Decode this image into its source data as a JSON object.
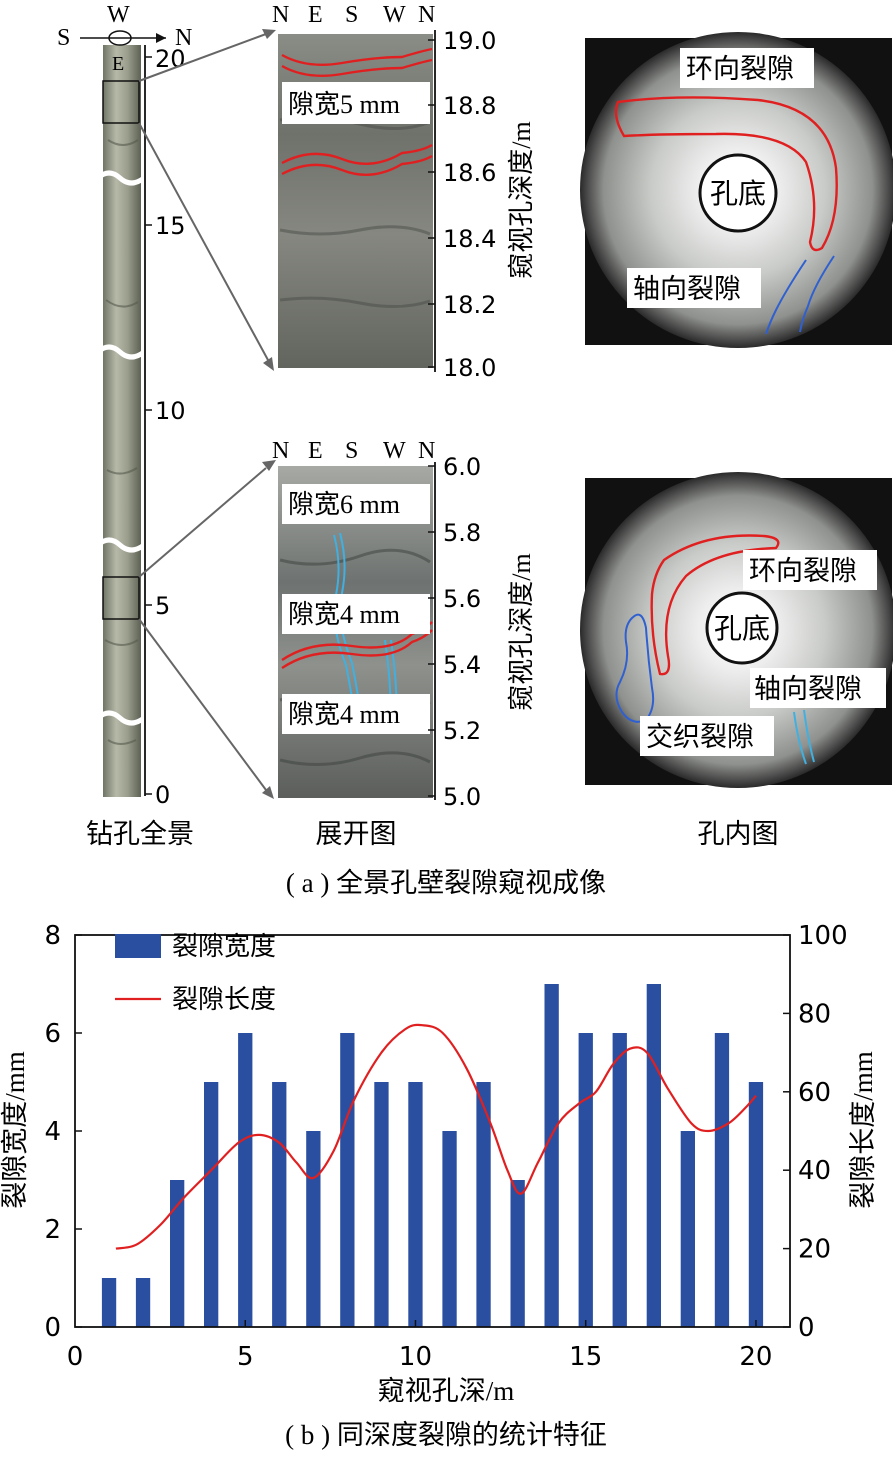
{
  "panel_a": {
    "caption": "( a ) 全景孔壁裂隙窥视成像",
    "borehole": {
      "label": "钻孔全景",
      "compass": {
        "s": "S",
        "w": "W",
        "n": "N",
        "e": "E"
      },
      "depth_ticks": [
        "0",
        "5",
        "10",
        "15",
        "20"
      ]
    },
    "unroll": {
      "label": "展开图",
      "direction_labels": [
        "N",
        "E",
        "S",
        "W",
        "N"
      ],
      "axis_title": "窥视孔深度/m",
      "upper": {
        "ticks": [
          "18.0",
          "18.2",
          "18.4",
          "18.6",
          "18.8",
          "19.0"
        ],
        "annotations": [
          "隙宽5 mm"
        ]
      },
      "lower": {
        "ticks": [
          "5.0",
          "5.2",
          "5.4",
          "5.6",
          "5.8",
          "6.0"
        ],
        "annotations": [
          "隙宽6 mm",
          "隙宽4 mm",
          "隙宽4 mm"
        ]
      }
    },
    "hole": {
      "label": "孔内图",
      "upper": {
        "bottom": "孔底",
        "ring_crack": "环向裂隙",
        "axial_crack": "轴向裂隙"
      },
      "lower": {
        "bottom": "孔底",
        "ring_crack": "环向裂隙",
        "axial_crack": "轴向裂隙",
        "interwoven_crack": "交织裂隙"
      }
    },
    "colors": {
      "ring_crack": "#e02020",
      "axial_crack": "#3060d0",
      "cyan_crack": "#40b0e0"
    }
  },
  "panel_b": {
    "caption": "( b ) 同深度裂隙的统计特征"
  },
  "chart_data": {
    "type": "bar",
    "xlabel": "窥视孔深/m",
    "ylabel_left": "裂隙宽度/mm",
    "ylabel_right": "裂隙长度/mm",
    "xlim": [
      0,
      21
    ],
    "x_ticks": [
      "0",
      "5",
      "10",
      "15",
      "20"
    ],
    "ylim_left": [
      0,
      8
    ],
    "y_ticks_left": [
      "0",
      "2",
      "4",
      "6",
      "8"
    ],
    "ylim_right": [
      0,
      100
    ],
    "y_ticks_right": [
      "0",
      "20",
      "40",
      "60",
      "80",
      "100"
    ],
    "legend": "top-left",
    "x": [
      1,
      2,
      3,
      4,
      5,
      6,
      7,
      8,
      9,
      10,
      11,
      12,
      13,
      14,
      15,
      16,
      17,
      18,
      19,
      20
    ],
    "series": [
      {
        "name": "裂隙宽度",
        "kind": "bar",
        "axis": "left",
        "color": "#2a4ea0",
        "values": [
          1,
          1,
          3,
          5,
          6,
          5,
          4,
          6,
          5,
          5,
          4,
          5,
          3,
          7,
          6,
          6,
          7,
          4,
          6,
          5
        ]
      },
      {
        "name": "裂隙长度",
        "kind": "line",
        "axis": "right",
        "color": "#e02020",
        "x": [
          1.2,
          1.8,
          2.5,
          3.2,
          4.0,
          4.8,
          5.4,
          6.0,
          6.5,
          7.0,
          7.6,
          8.2,
          9.0,
          9.7,
          10.2,
          10.8,
          11.5,
          12.2,
          12.7,
          13.1,
          13.6,
          14.2,
          14.8,
          15.3,
          15.8,
          16.3,
          16.8,
          17.4,
          18.1,
          18.6,
          19.2,
          19.7,
          20.0
        ],
        "values": [
          20,
          21,
          26,
          33,
          40,
          47,
          49,
          47,
          42,
          38,
          45,
          58,
          70,
          76,
          77,
          75,
          66,
          52,
          40,
          34,
          42,
          52,
          57,
          60,
          67,
          71,
          70,
          61,
          52,
          50,
          52,
          56,
          59
        ]
      }
    ]
  }
}
